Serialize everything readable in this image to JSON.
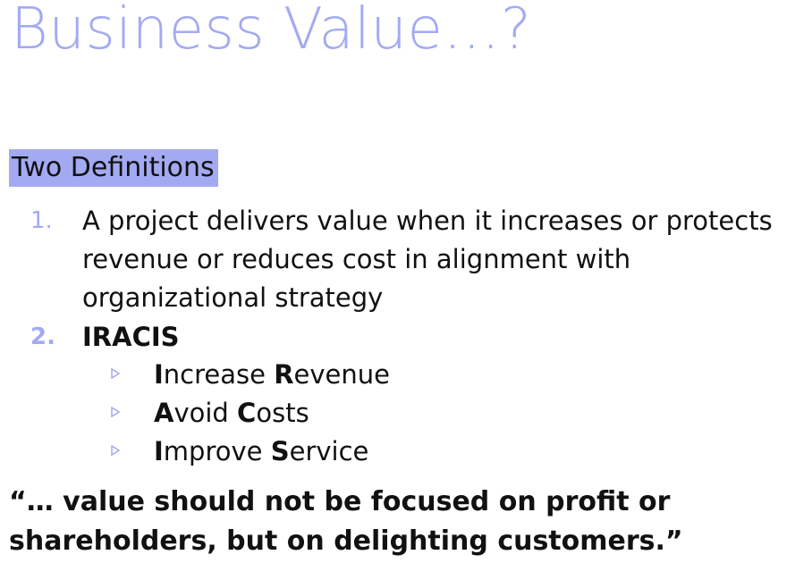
{
  "slide": {
    "title": "Business Value…?",
    "heading": "Two Definitions",
    "items": [
      {
        "number": "1.",
        "text": "A project delivers value when it increases or protects revenue or reduces cost in alignment with organizational strategy"
      },
      {
        "number": "2.",
        "text": "IRACIS",
        "subitems": [
          {
            "first_letter": "I",
            "rest1": "ncrease ",
            "second_letter": "R",
            "rest2": "evenue"
          },
          {
            "first_letter": "A",
            "rest1": "void ",
            "second_letter": "C",
            "rest2": "osts"
          },
          {
            "first_letter": "I",
            "rest1": "mprove ",
            "second_letter": "S",
            "rest2": "ervice"
          }
        ]
      }
    ],
    "quote": "“… value should not be focused on profit or shareholders, but on delighting customers.”"
  },
  "colors": {
    "accent": "#a3aaf2",
    "text": "#111111"
  },
  "icons": {
    "bullet": "triangle-right-outline-icon"
  }
}
